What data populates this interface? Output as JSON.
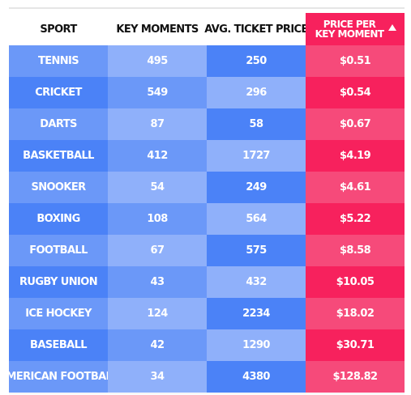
{
  "colors": {
    "dark_blue": "#4b82f7",
    "mid_blue": "#6b98f8",
    "light_blue": "#8fb0fa",
    "highlight_header": "#f7215d",
    "highlight_dark": "#f7215d",
    "highlight_light": "#f64a7a"
  },
  "header": {
    "columns": [
      "SPORT",
      "KEY MOMENTS",
      "AVG. TICKET PRICE"
    ],
    "highlight_line1": "PRICE PER",
    "highlight_line2": "KEY MOMENT",
    "sort_icon": "triangle-up-icon"
  },
  "chart_data": {
    "type": "table",
    "columns": [
      "SPORT",
      "KEY MOMENTS",
      "AVG. TICKET PRICE",
      "PRICE PER KEY MOMENT"
    ],
    "sorted_by": "PRICE PER KEY MOMENT",
    "sort_direction": "ascending",
    "rows": [
      {
        "sport": "TENNIS",
        "key_moments": "495",
        "avg_ticket_price": "250",
        "price_per_key_moment": "$0.51"
      },
      {
        "sport": "CRICKET",
        "key_moments": "549",
        "avg_ticket_price": "296",
        "price_per_key_moment": "$0.54"
      },
      {
        "sport": "DARTS",
        "key_moments": "87",
        "avg_ticket_price": "58",
        "price_per_key_moment": "$0.67"
      },
      {
        "sport": "BASKETBALL",
        "key_moments": "412",
        "avg_ticket_price": "1727",
        "price_per_key_moment": "$4.19"
      },
      {
        "sport": "SNOOKER",
        "key_moments": "54",
        "avg_ticket_price": "249",
        "price_per_key_moment": "$4.61"
      },
      {
        "sport": "BOXING",
        "key_moments": "108",
        "avg_ticket_price": "564",
        "price_per_key_moment": "$5.22"
      },
      {
        "sport": "FOOTBALL",
        "key_moments": "67",
        "avg_ticket_price": "575",
        "price_per_key_moment": "$8.58"
      },
      {
        "sport": "RUGBY UNION",
        "key_moments": "43",
        "avg_ticket_price": "432",
        "price_per_key_moment": "$10.05"
      },
      {
        "sport": "ICE HOCKEY",
        "key_moments": "124",
        "avg_ticket_price": "2234",
        "price_per_key_moment": "$18.02"
      },
      {
        "sport": "BASEBALL",
        "key_moments": "42",
        "avg_ticket_price": "1290",
        "price_per_key_moment": "$30.71"
      },
      {
        "sport": "AMERICAN FOOTBALL",
        "key_moments": "34",
        "avg_ticket_price": "4380",
        "price_per_key_moment": "$128.82"
      }
    ]
  }
}
